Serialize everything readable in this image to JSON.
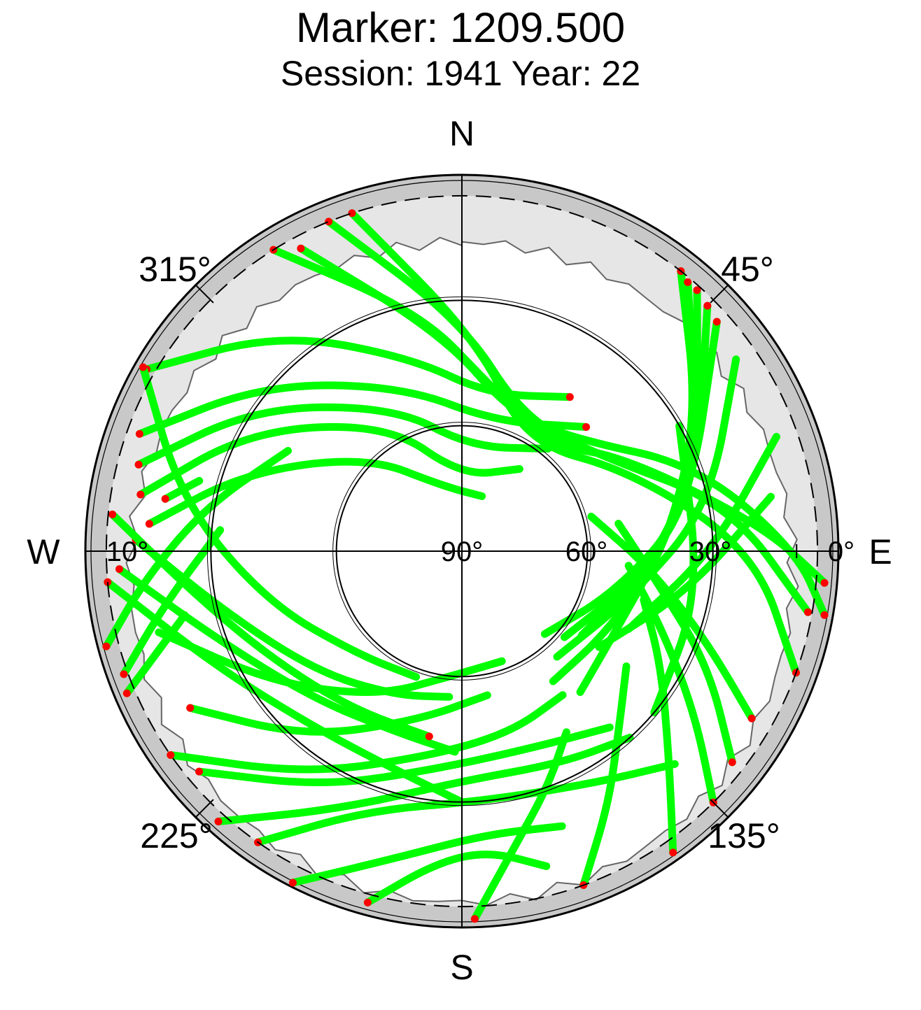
{
  "title": "Marker: 1209.500",
  "subtitle": "Session: 1941 Year: 22",
  "compass": {
    "north": "N",
    "south": "S",
    "east": "E",
    "west": "W"
  },
  "azimuth_labels": [
    "45°",
    "135°",
    "225°",
    "315°"
  ],
  "elevation_labels": [
    "0°",
    "10°",
    "30°",
    "60°",
    "90°"
  ],
  "colors": {
    "track": "#00ff00",
    "track_end": "#ff0000",
    "outer_ring": "#c8c8c8",
    "mask": "#e6e6e6",
    "axes": "#000000"
  },
  "chart_data": {
    "type": "scatter",
    "projection": "polar-skyplot",
    "title": "Marker: 1209.500",
    "subtitle": "Session: 1941 Year: 22",
    "elevation_circles": [
      10,
      30,
      60
    ],
    "elevation_range": [
      0,
      90
    ],
    "azimuth_direction": "clockwise-from-north",
    "grid": true,
    "legend": "none",
    "tracks": [
      {
        "points": [
          [
            -32,
            5
          ],
          [
            -10,
            32
          ],
          [
            10,
            50
          ],
          [
            40,
            57
          ],
          [
            60,
            45
          ],
          [
            85,
            18
          ],
          [
            95,
            3
          ]
        ],
        "end_markers": [
          0,
          6
        ]
      },
      {
        "points": [
          [
            -28,
            8
          ],
          [
            -5,
            38
          ],
          [
            20,
            55
          ],
          [
            45,
            52
          ],
          [
            70,
            30
          ],
          [
            90,
            10
          ],
          [
            100,
            2
          ]
        ],
        "end_markers": [
          0,
          6
        ]
      },
      {
        "points": [
          [
            -22,
            5
          ],
          [
            0,
            35
          ],
          [
            25,
            55
          ],
          [
            55,
            50
          ],
          [
            80,
            25
          ],
          [
            100,
            6
          ]
        ],
        "end_markers": [
          0,
          5
        ]
      },
      {
        "points": [
          [
            -18,
            5
          ],
          [
            5,
            40
          ],
          [
            30,
            60
          ],
          [
            65,
            45
          ],
          [
            90,
            20
          ],
          [
            110,
            5
          ]
        ],
        "end_markers": [
          0,
          5
        ]
      },
      {
        "points": [
          [
            -60,
            3
          ],
          [
            -40,
            22
          ],
          [
            -15,
            42
          ],
          [
            10,
            52
          ],
          [
            35,
            45
          ]
        ],
        "end_markers": [
          0,
          4
        ]
      },
      {
        "points": [
          [
            -70,
            8
          ],
          [
            -50,
            28
          ],
          [
            -20,
            48
          ],
          [
            15,
            58
          ],
          [
            45,
            48
          ]
        ],
        "end_markers": [
          0,
          4
        ]
      },
      {
        "points": [
          [
            -75,
            10
          ],
          [
            -55,
            30
          ],
          [
            -25,
            52
          ],
          [
            5,
            65
          ],
          [
            40,
            58
          ]
        ],
        "end_markers": [
          0
        ]
      },
      {
        "points": [
          [
            -80,
            12
          ],
          [
            -60,
            32
          ],
          [
            -30,
            55
          ],
          [
            0,
            72
          ],
          [
            35,
            66
          ]
        ],
        "end_markers": [
          0
        ]
      },
      {
        "points": [
          [
            -85,
            15
          ],
          [
            -70,
            35
          ],
          [
            -45,
            58
          ],
          [
            -15,
            74
          ],
          [
            20,
            76
          ]
        ],
        "end_markers": [
          0
        ]
      },
      {
        "points": [
          [
            -95,
            5
          ],
          [
            -115,
            25
          ],
          [
            -140,
            35
          ],
          [
            -165,
            35
          ],
          [
            -180,
            30
          ]
        ],
        "end_markers": [
          0,
          4
        ]
      },
      {
        "points": [
          [
            -93,
            8
          ],
          [
            -110,
            28
          ],
          [
            -135,
            40
          ],
          [
            -160,
            44
          ],
          [
            -178,
            42
          ]
        ],
        "end_markers": [
          0
        ]
      },
      {
        "points": [
          [
            -88,
            12
          ],
          [
            -105,
            32
          ],
          [
            -130,
            45
          ],
          [
            -155,
            52
          ],
          [
            -175,
            55
          ]
        ],
        "end_markers": [
          0
        ]
      },
      {
        "points": [
          [
            -84,
            6
          ],
          [
            -100,
            26
          ],
          [
            -120,
            38
          ],
          [
            -145,
            44
          ],
          [
            -170,
            45
          ]
        ],
        "end_markers": [
          0,
          4
        ]
      },
      {
        "points": [
          [
            -60,
            2
          ],
          [
            -80,
            22
          ],
          [
            -105,
            42
          ],
          [
            -135,
            55
          ],
          [
            -160,
            58
          ]
        ],
        "end_markers": [
          0
        ]
      },
      {
        "points": [
          [
            -125,
            5
          ],
          [
            -145,
            25
          ],
          [
            -170,
            40
          ],
          [
            165,
            45
          ],
          [
            145,
            48
          ]
        ],
        "end_markers": [
          0
        ]
      },
      {
        "points": [
          [
            -130,
            8
          ],
          [
            -150,
            25
          ],
          [
            -175,
            38
          ],
          [
            160,
            40
          ],
          [
            140,
            35
          ]
        ],
        "end_markers": [
          0
        ]
      },
      {
        "points": [
          [
            -138,
            3
          ],
          [
            -155,
            22
          ],
          [
            180,
            35
          ],
          [
            155,
            34
          ],
          [
            138,
            30
          ]
        ],
        "end_markers": [
          0
        ]
      },
      {
        "points": [
          [
            -145,
            5
          ],
          [
            -160,
            24
          ],
          [
            175,
            30
          ],
          [
            150,
            26
          ],
          [
            135,
            18
          ]
        ],
        "end_markers": [
          0
        ]
      },
      {
        "points": [
          [
            -120,
            15
          ],
          [
            -140,
            32
          ],
          [
            -165,
            48
          ],
          [
            170,
            55
          ]
        ],
        "end_markers": [
          0
        ]
      },
      {
        "points": [
          [
            -105,
            15
          ],
          [
            -125,
            35
          ],
          [
            -150,
            50
          ],
          [
            -175,
            60
          ],
          [
            160,
            62
          ]
        ],
        "end_markers": []
      },
      {
        "points": [
          [
            -153,
            1
          ],
          [
            -168,
            15
          ],
          [
            175,
            22
          ],
          [
            160,
            20
          ]
        ],
        "end_markers": [
          0
        ]
      },
      {
        "points": [
          [
            -165,
            3
          ],
          [
            -175,
            15
          ],
          [
            175,
            18
          ],
          [
            165,
            12
          ]
        ],
        "end_markers": [
          0
        ]
      },
      {
        "points": [
          [
            178,
            2
          ],
          [
            170,
            18
          ],
          [
            160,
            30
          ],
          [
            150,
            40
          ]
        ],
        "end_markers": [
          0
        ]
      },
      {
        "points": [
          [
            160,
            5
          ],
          [
            150,
            20
          ],
          [
            140,
            32
          ],
          [
            125,
            42
          ]
        ],
        "end_markers": [
          0
        ]
      },
      {
        "points": [
          [
            145,
            2
          ],
          [
            135,
            20
          ],
          [
            120,
            35
          ],
          [
            105,
            45
          ]
        ],
        "end_markers": [
          0
        ]
      },
      {
        "points": [
          [
            135,
            5
          ],
          [
            125,
            22
          ],
          [
            112,
            38
          ],
          [
            95,
            50
          ]
        ],
        "end_markers": [
          0
        ]
      },
      {
        "points": [
          [
            128,
            8
          ],
          [
            115,
            25
          ],
          [
            100,
            42
          ],
          [
            80,
            52
          ]
        ],
        "end_markers": [
          0
        ]
      },
      {
        "points": [
          [
            120,
            10
          ],
          [
            110,
            28
          ],
          [
            95,
            45
          ],
          [
            75,
            58
          ]
        ],
        "end_markers": [
          0
        ]
      },
      {
        "points": [
          [
            38,
            5
          ],
          [
            60,
            25
          ],
          [
            85,
            40
          ],
          [
            110,
            48
          ],
          [
            140,
            46
          ]
        ],
        "end_markers": [
          0
        ]
      },
      {
        "points": [
          [
            40,
            6
          ],
          [
            65,
            28
          ],
          [
            90,
            42
          ],
          [
            118,
            50
          ],
          [
            145,
            52
          ]
        ],
        "end_markers": [
          0
        ]
      },
      {
        "points": [
          [
            42,
            6
          ],
          [
            70,
            30
          ],
          [
            95,
            45
          ],
          [
            125,
            55
          ]
        ],
        "end_markers": [
          0
        ]
      },
      {
        "points": [
          [
            45,
            7
          ],
          [
            75,
            32
          ],
          [
            100,
            48
          ],
          [
            130,
            58
          ]
        ],
        "end_markers": [
          0
        ]
      },
      {
        "points": [
          [
            48,
            8
          ],
          [
            80,
            35
          ],
          [
            105,
            52
          ],
          [
            135,
            62
          ]
        ],
        "end_markers": [
          0
        ]
      },
      {
        "points": [
          [
            55,
            10
          ],
          [
            80,
            30
          ],
          [
            105,
            48
          ],
          [
            138,
            56
          ]
        ],
        "end_markers": []
      },
      {
        "points": [
          [
            70,
            10
          ],
          [
            90,
            30
          ],
          [
            115,
            46
          ]
        ],
        "end_markers": []
      },
      {
        "points": [
          [
            80,
            15
          ],
          [
            100,
            35
          ],
          [
            125,
            50
          ]
        ],
        "end_markers": []
      },
      {
        "points": [
          [
            -300,
            30
          ],
          [
            -260,
            32
          ],
          [
            -230,
            30
          ]
        ],
        "end_markers": []
      },
      {
        "points": [
          [
            -105,
            2
          ],
          [
            -95,
            14
          ],
          [
            -80,
            28
          ],
          [
            -60,
            42
          ]
        ],
        "end_markers": [
          0
        ]
      },
      {
        "points": [
          [
            -110,
            4
          ],
          [
            -100,
            18
          ],
          [
            -85,
            32
          ]
        ],
        "end_markers": [
          0
        ]
      },
      {
        "points": [
          [
            -113,
            3
          ],
          [
            -103,
            22
          ]
        ],
        "end_markers": [
          0
        ]
      },
      {
        "points": [
          [
            -80,
            18
          ],
          [
            -75,
            25
          ]
        ],
        "end_markers": [
          0
        ]
      }
    ]
  }
}
